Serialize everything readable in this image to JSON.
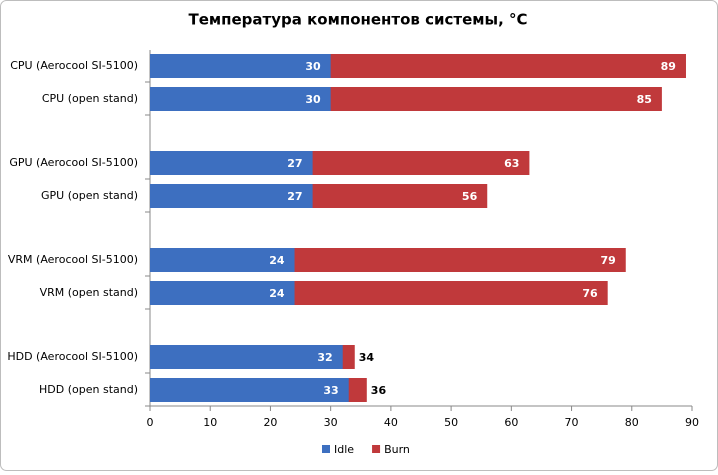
{
  "chart_data": {
    "type": "overlap-hbar",
    "title": "Температура компонентов системы, °C",
    "categories": [
      "CPU (Aerocool SI-5100)",
      "CPU (open stand)",
      "GPU (Aerocool SI-5100)",
      "GPU (open stand)",
      "VRM (Aerocool SI-5100)",
      "VRM (open stand)",
      "HDD (Aerocool SI-5100)",
      "HDD (open stand)"
    ],
    "series": [
      {
        "name": "Burn",
        "color": "#c0393b",
        "values": [
          89,
          85,
          63,
          56,
          79,
          76,
          34,
          36
        ]
      },
      {
        "name": "Idle",
        "color": "#3d6fc0",
        "values": [
          30,
          30,
          27,
          27,
          24,
          24,
          32,
          33
        ]
      }
    ],
    "xlim": [
      0,
      90
    ],
    "xticks": [
      0,
      10,
      20,
      30,
      40,
      50,
      60,
      70,
      80,
      90
    ],
    "grid": false,
    "legend": "bottom"
  }
}
